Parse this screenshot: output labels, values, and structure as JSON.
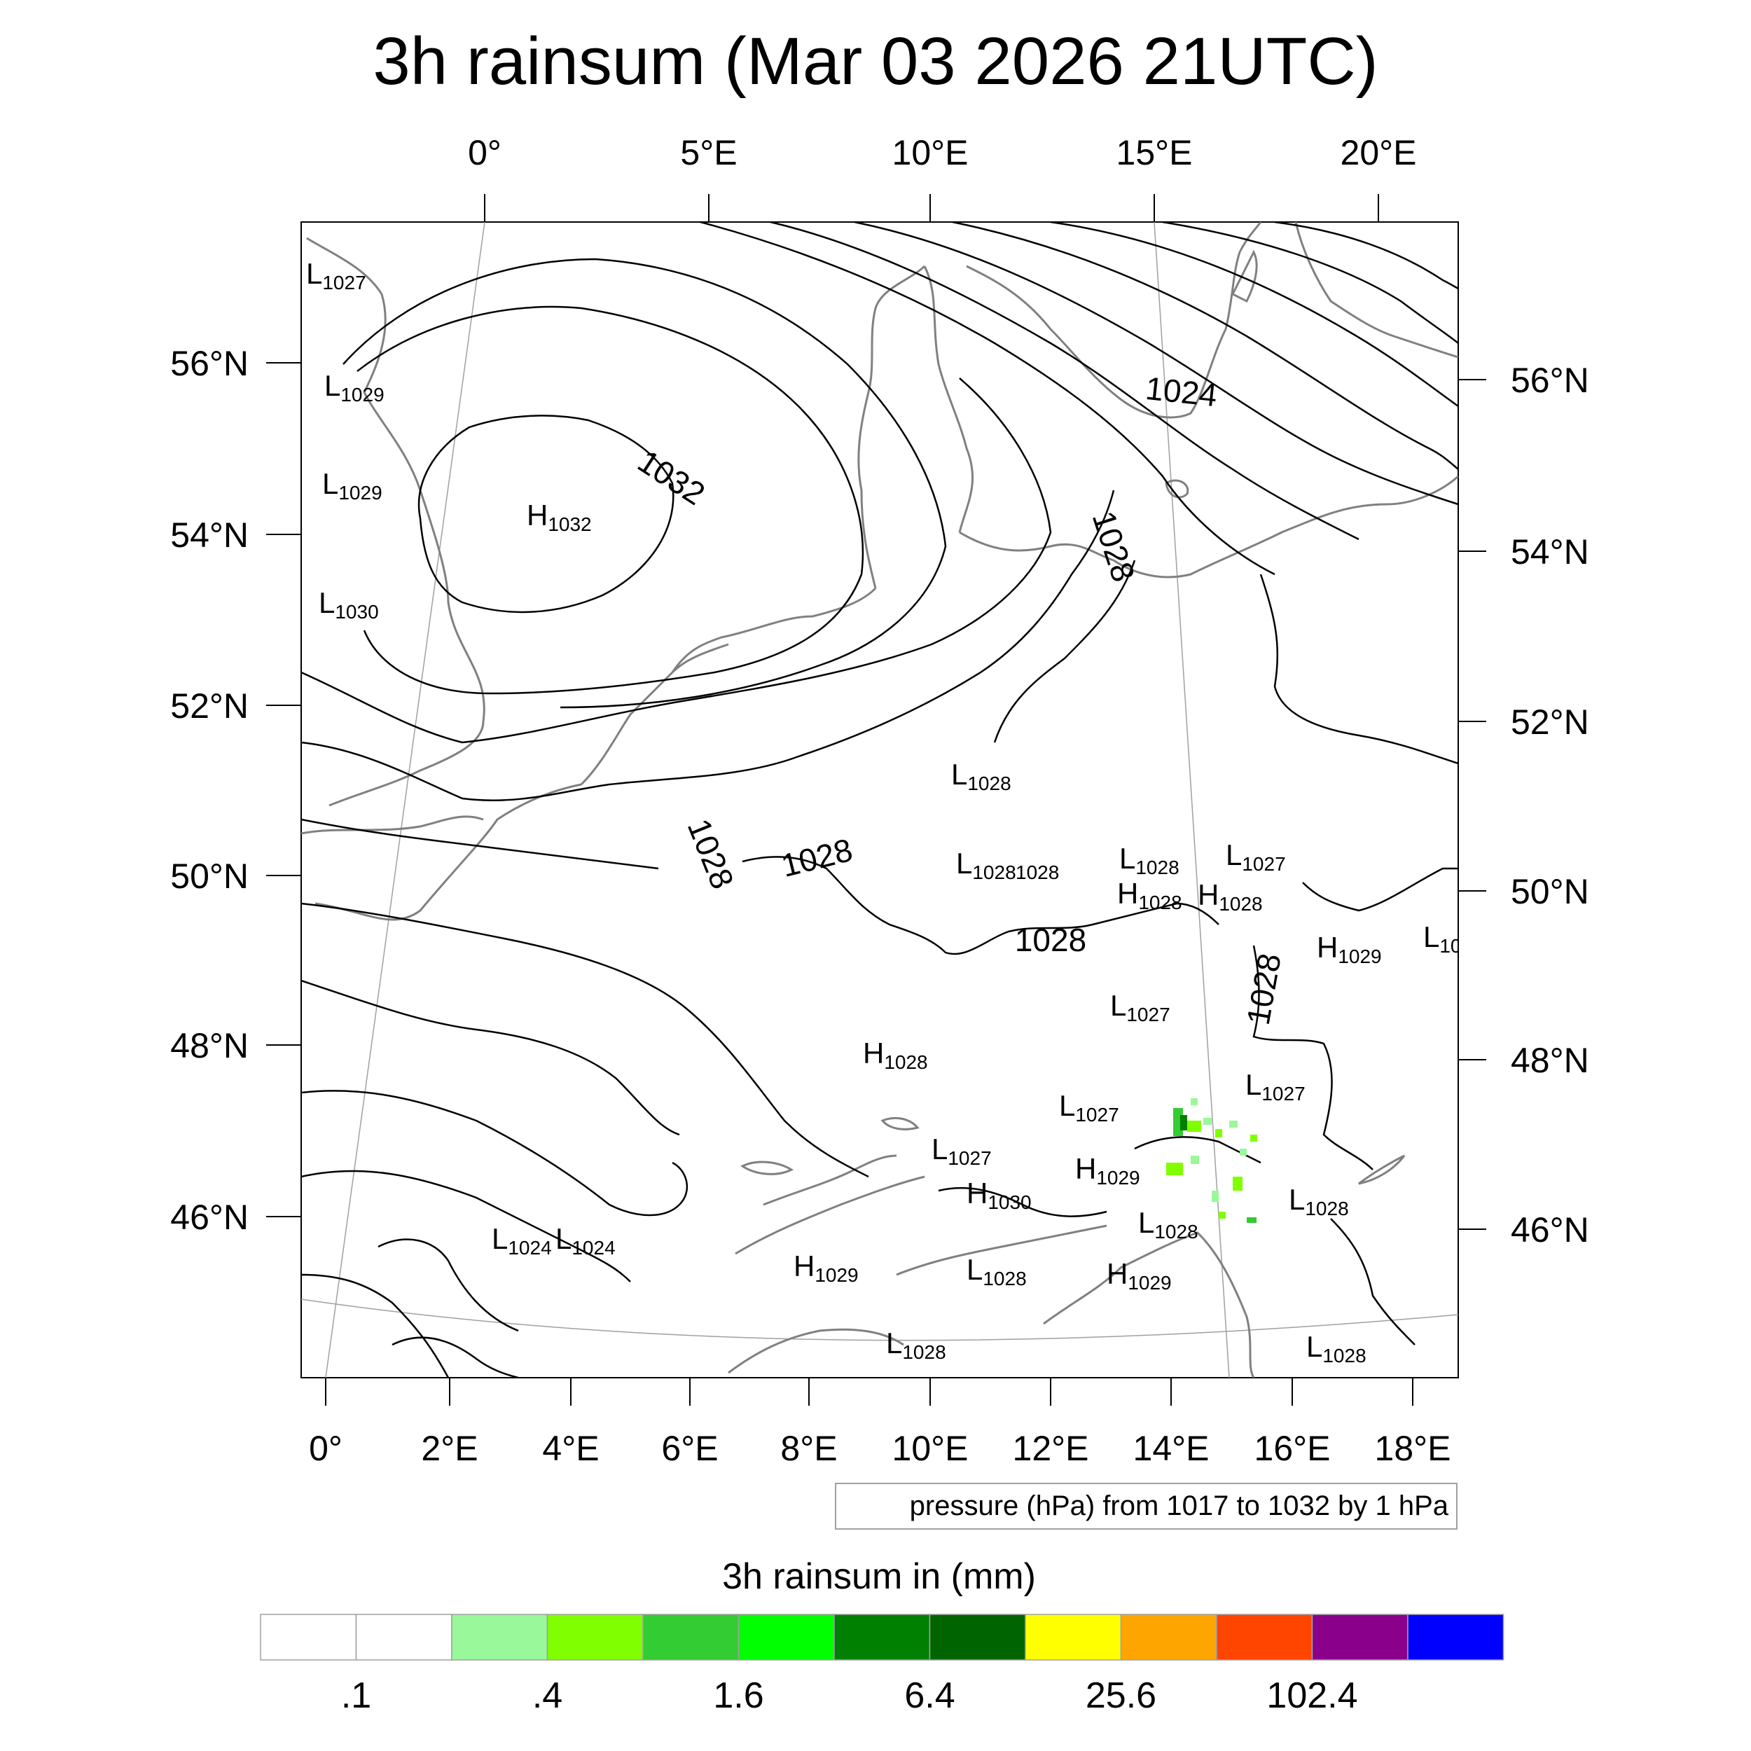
{
  "title": "3h rainsum (Mar 03 2026 21UTC)",
  "top_lon_ticks": [
    "0°",
    "5°E",
    "10°E",
    "15°E",
    "20°E"
  ],
  "bottom_lon_ticks": [
    "0°",
    "2°E",
    "4°E",
    "6°E",
    "8°E",
    "10°E",
    "12°E",
    "14°E",
    "16°E",
    "18°E"
  ],
  "left_lat_ticks": [
    "56°N",
    "54°N",
    "52°N",
    "50°N",
    "48°N",
    "46°N"
  ],
  "right_lat_ticks": [
    "56°N",
    "54°N",
    "52°N",
    "50°N",
    "48°N",
    "46°N"
  ],
  "pressure_note": "pressure (hPa) from 1017 to 1032 by 1 hPa",
  "contour_labels": [
    "1032",
    "1024",
    "1028",
    "1028",
    "1028",
    "1028",
    "1028"
  ],
  "pressure_centers": [
    {
      "t": "L",
      "v": "1027"
    },
    {
      "t": "L",
      "v": "1029"
    },
    {
      "t": "L",
      "v": "1029"
    },
    {
      "t": "H",
      "v": "1032"
    },
    {
      "t": "L",
      "v": "1030"
    },
    {
      "t": "L",
      "v": "1028"
    },
    {
      "t": "L",
      "v": "1028"
    },
    {
      "t": "",
      "v": "1028"
    },
    {
      "t": "L",
      "v": "1028"
    },
    {
      "t": "L",
      "v": "1027"
    },
    {
      "t": "H",
      "v": "1028"
    },
    {
      "t": "H",
      "v": "1028"
    },
    {
      "t": "H",
      "v": "1029"
    },
    {
      "t": "L",
      "v": "10"
    },
    {
      "t": "L",
      "v": "1027"
    },
    {
      "t": "H",
      "v": "1028"
    },
    {
      "t": "L",
      "v": "1027"
    },
    {
      "t": "L",
      "v": "1027"
    },
    {
      "t": "L",
      "v": "1027"
    },
    {
      "t": "H",
      "v": "1029"
    },
    {
      "t": "H",
      "v": "1030"
    },
    {
      "t": "L",
      "v": "1028"
    },
    {
      "t": "L",
      "v": "1028"
    },
    {
      "t": "L",
      "v": "1024"
    },
    {
      "t": "L",
      "v": "1024"
    },
    {
      "t": "H",
      "v": "1029"
    },
    {
      "t": "L",
      "v": "1028"
    },
    {
      "t": "H",
      "v": "1029"
    },
    {
      "t": "L",
      "v": "1028"
    },
    {
      "t": "L",
      "v": "1028"
    }
  ],
  "colorbar": {
    "title": "3h rainsum in (mm)",
    "colors": [
      "#ffffff",
      "#ffffff",
      "#99f899",
      "#80ff00",
      "#33cc33",
      "#00ff00",
      "#008000",
      "#006400",
      "#ffff00",
      "#ffa500",
      "#ff4500",
      "#8b008b",
      "#0000ff"
    ],
    "labels": [
      ".1",
      ".4",
      "1.6",
      "6.4",
      "25.6",
      "102.4"
    ]
  },
  "colors": {
    "coast": "#808080",
    "grid": "#a0a0a0",
    "isobar": "#000000"
  }
}
